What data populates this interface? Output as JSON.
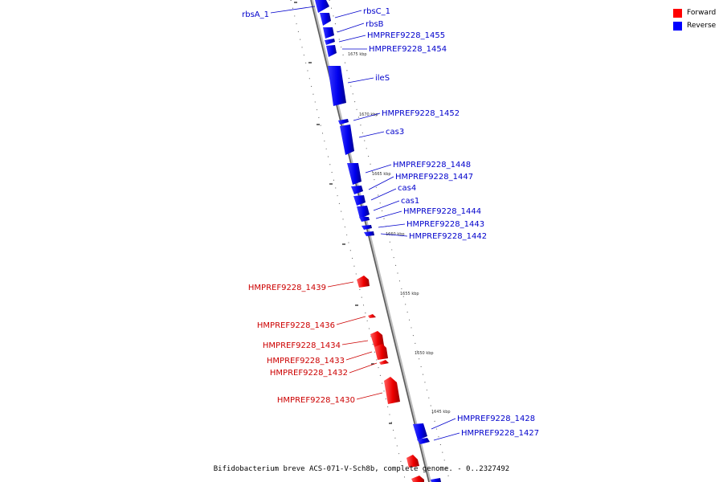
{
  "legend": {
    "forward_label": "Forward",
    "reverse_label": "Reverse",
    "forward_color": "#ff0000",
    "reverse_color": "#0000ff"
  },
  "caption": "Bifidobacterium breve ACS-071-V-Sch8b, complete genome. - 0..2327492",
  "ticks": [
    "1675 kbp",
    "1670 kbp",
    "1665 kbp",
    "1660 kbp",
    "1655 kbp",
    "1650 kbp",
    "1645 kbp"
  ],
  "genes": [
    {
      "name": "rbsA_1",
      "strand": "reverse"
    },
    {
      "name": "rbsC_1",
      "strand": "reverse"
    },
    {
      "name": "rbsB",
      "strand": "reverse"
    },
    {
      "name": "HMPREF9228_1455",
      "strand": "reverse"
    },
    {
      "name": "HMPREF9228_1454",
      "strand": "reverse"
    },
    {
      "name": "ileS",
      "strand": "reverse"
    },
    {
      "name": "HMPREF9228_1452",
      "strand": "reverse"
    },
    {
      "name": "cas3",
      "strand": "reverse"
    },
    {
      "name": "HMPREF9228_1448",
      "strand": "reverse"
    },
    {
      "name": "HMPREF9228_1447",
      "strand": "reverse"
    },
    {
      "name": "cas4",
      "strand": "reverse"
    },
    {
      "name": "cas1",
      "strand": "reverse"
    },
    {
      "name": "HMPREF9228_1444",
      "strand": "reverse"
    },
    {
      "name": "HMPREF9228_1443",
      "strand": "reverse"
    },
    {
      "name": "HMPREF9228_1442",
      "strand": "reverse"
    },
    {
      "name": "HMPREF9228_1439",
      "strand": "forward"
    },
    {
      "name": "HMPREF9228_1436",
      "strand": "forward"
    },
    {
      "name": "HMPREF9228_1434",
      "strand": "forward"
    },
    {
      "name": "HMPREF9228_1433",
      "strand": "forward"
    },
    {
      "name": "HMPREF9228_1432",
      "strand": "forward"
    },
    {
      "name": "HMPREF9228_1430",
      "strand": "forward"
    },
    {
      "name": "HMPREF9228_1428",
      "strand": "reverse"
    },
    {
      "name": "HMPREF9228_1427",
      "strand": "reverse"
    }
  ]
}
